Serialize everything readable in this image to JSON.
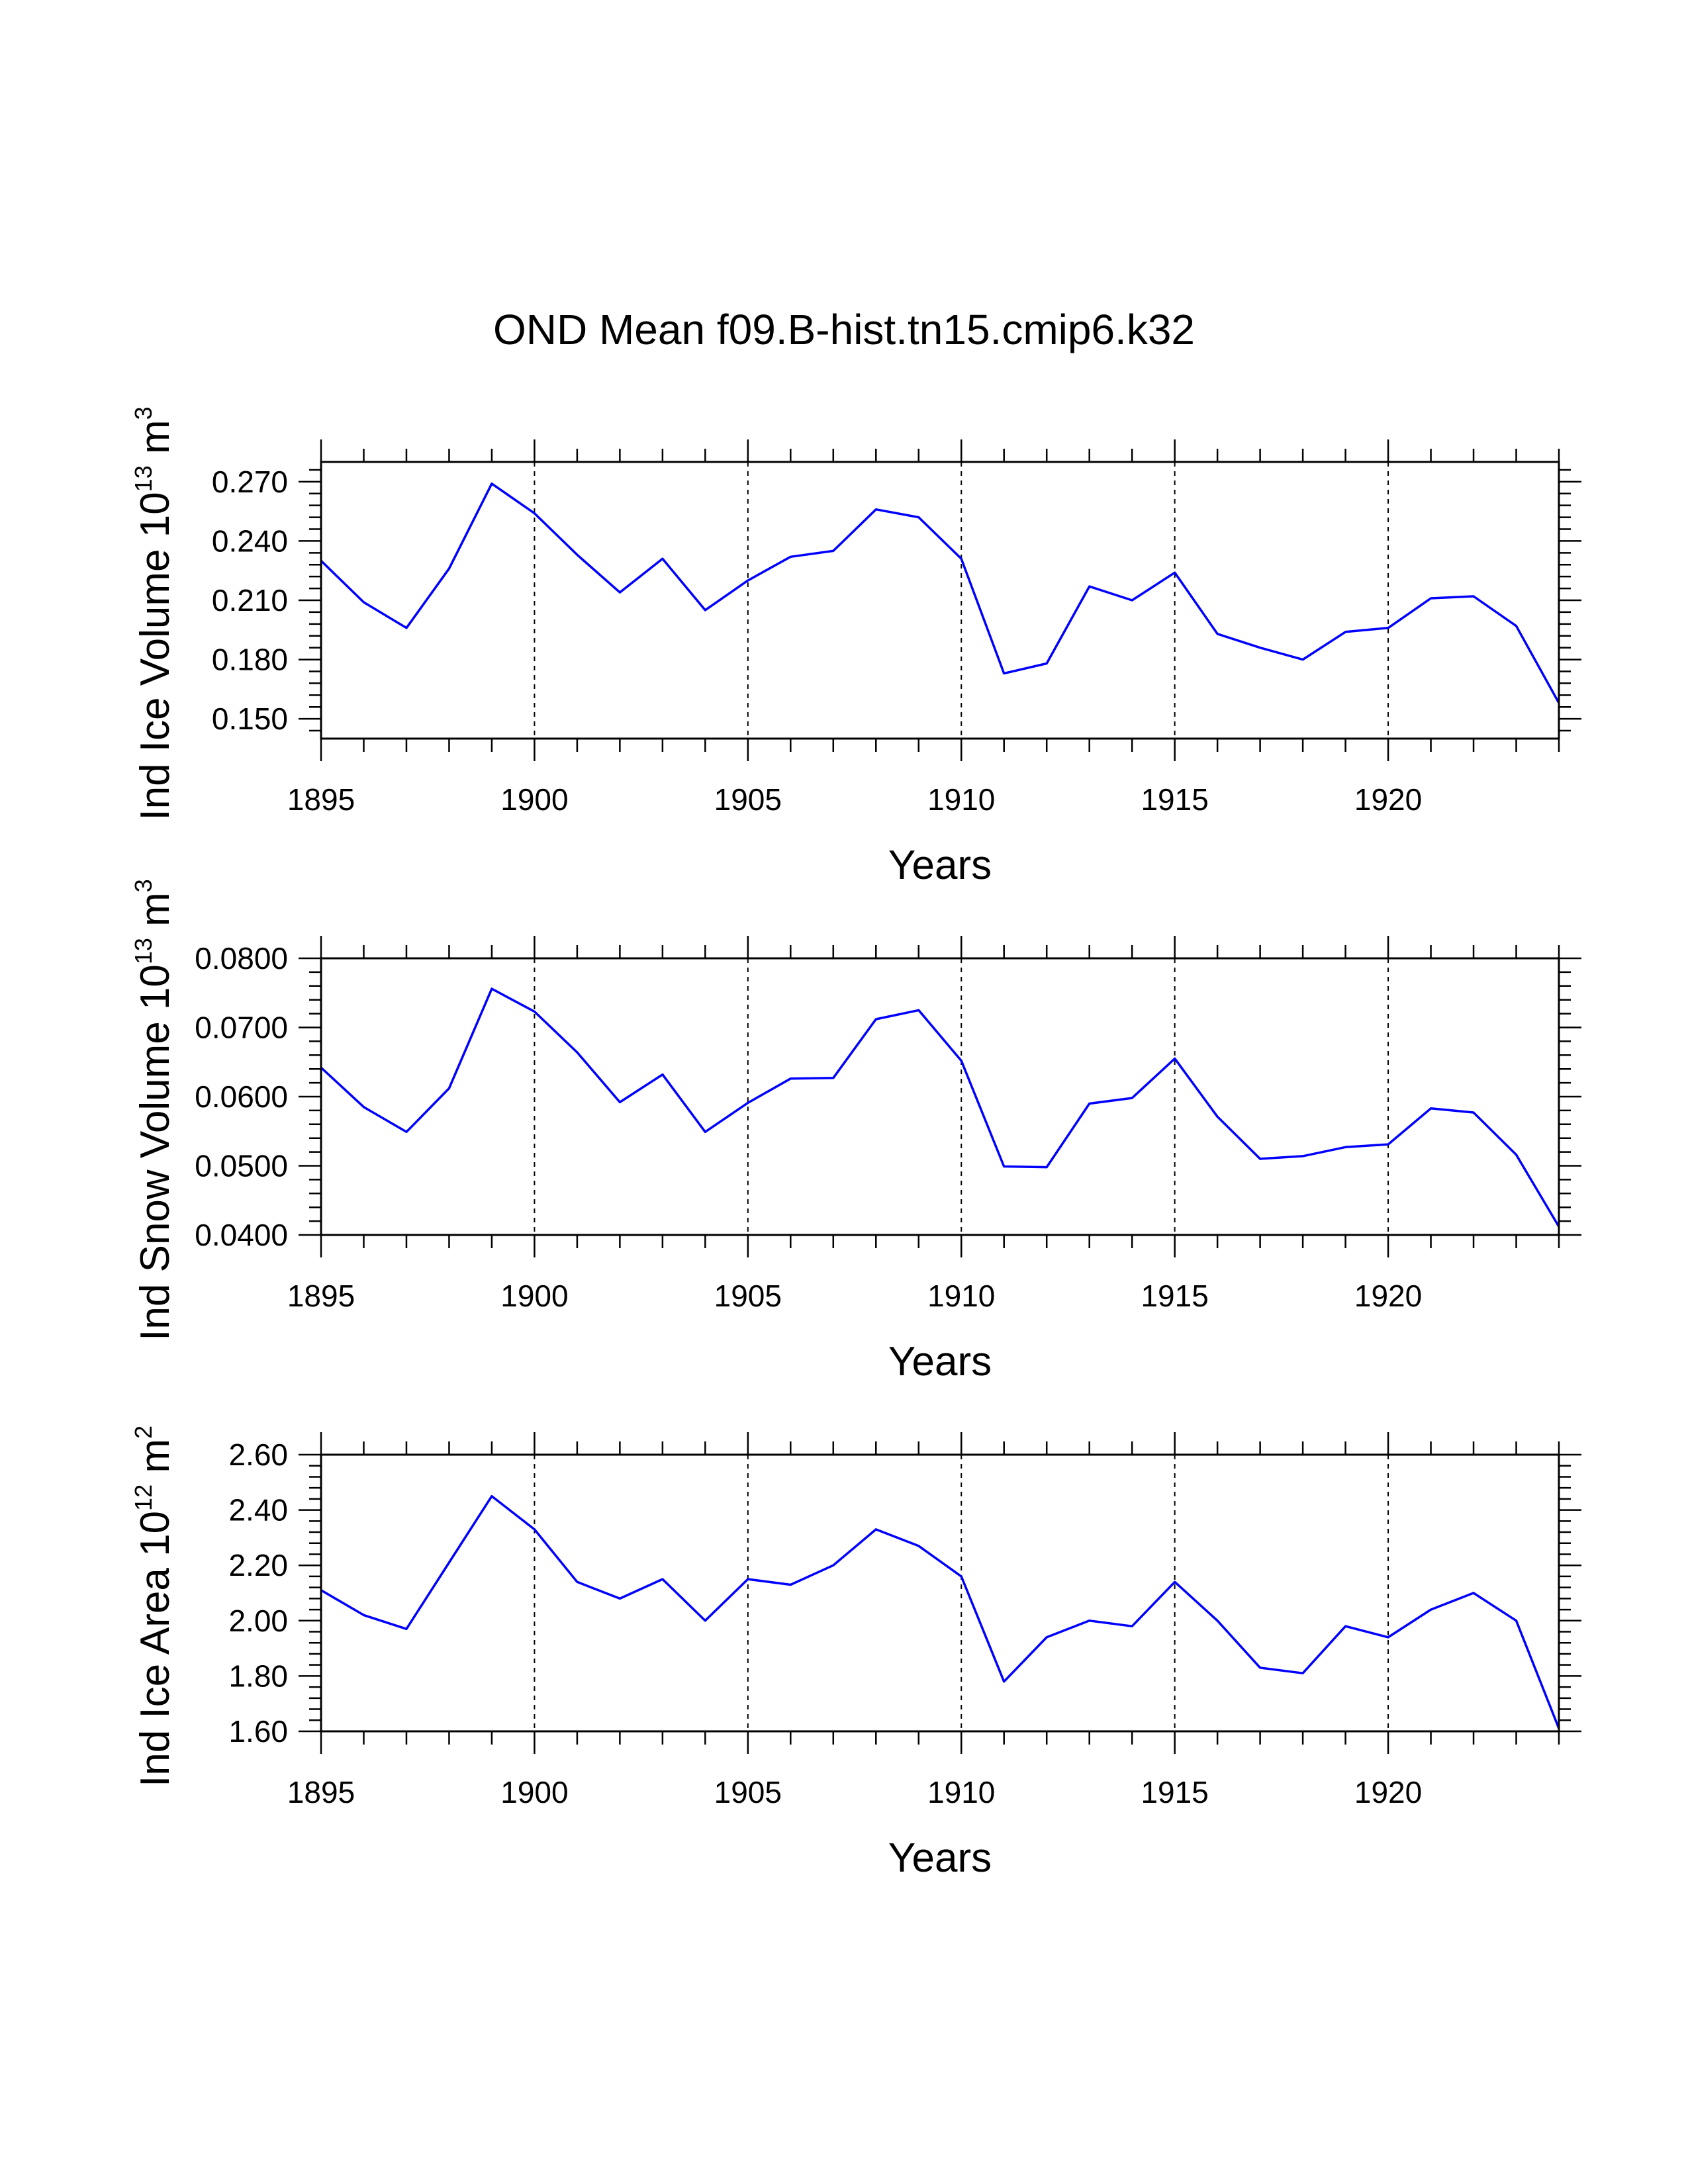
{
  "title": "OND Mean f09.B-hist.tn15.cmip6.k32",
  "colors": {
    "line": "#0000ff",
    "axis": "#000000",
    "grid": "#000000",
    "background": "#ffffff"
  },
  "chart_data": [
    {
      "type": "line",
      "xlabel": "Years",
      "ylabel": {
        "prefix": "Ind Ice Volume 10",
        "exponent": "13",
        "unit": " m",
        "unit_exponent": "3"
      },
      "xlim": [
        1895,
        1924
      ],
      "ylim": [
        0.14,
        0.28
      ],
      "xticks": [
        1895,
        1900,
        1905,
        1910,
        1915,
        1920
      ],
      "xtick_labels": [
        "1895",
        "1900",
        "1905",
        "1910",
        "1915",
        "1920"
      ],
      "yticks": [
        0.15,
        0.18,
        0.21,
        0.24,
        0.27
      ],
      "ytick_labels": [
        "0.150",
        "0.180",
        "0.210",
        "0.240",
        "0.270"
      ],
      "grid": "vertical dashed at x major ticks",
      "series": [
        {
          "name": "Ind Ice Volume",
          "x": [
            1895,
            1896,
            1897,
            1898,
            1899,
            1900,
            1901,
            1902,
            1903,
            1904,
            1905,
            1906,
            1907,
            1908,
            1909,
            1910,
            1911,
            1912,
            1913,
            1914,
            1915,
            1916,
            1917,
            1918,
            1919,
            1920,
            1921,
            1922,
            1923,
            1924
          ],
          "values": [
            0.23,
            0.209,
            0.196,
            0.226,
            0.269,
            0.254,
            0.233,
            0.214,
            0.231,
            0.205,
            0.22,
            0.232,
            0.235,
            0.256,
            0.252,
            0.231,
            0.173,
            0.178,
            0.217,
            0.21,
            0.224,
            0.193,
            0.186,
            0.18,
            0.194,
            0.196,
            0.211,
            0.212,
            0.197,
            0.158
          ]
        }
      ]
    },
    {
      "type": "line",
      "xlabel": "Years",
      "ylabel": {
        "prefix": "Ind Snow Volume 10",
        "exponent": "13",
        "unit": " m",
        "unit_exponent": "3"
      },
      "xlim": [
        1895,
        1924
      ],
      "ylim": [
        0.04,
        0.08
      ],
      "xticks": [
        1895,
        1900,
        1905,
        1910,
        1915,
        1920
      ],
      "xtick_labels": [
        "1895",
        "1900",
        "1905",
        "1910",
        "1915",
        "1920"
      ],
      "yticks": [
        0.04,
        0.05,
        0.06,
        0.07,
        0.08
      ],
      "ytick_labels": [
        "0.0400",
        "0.0500",
        "0.0600",
        "0.0700",
        "0.0800"
      ],
      "grid": "vertical dashed at x major ticks",
      "series": [
        {
          "name": "Ind Snow Volume",
          "x": [
            1895,
            1896,
            1897,
            1898,
            1899,
            1900,
            1901,
            1902,
            1903,
            1904,
            1905,
            1906,
            1907,
            1908,
            1909,
            1910,
            1911,
            1912,
            1913,
            1914,
            1915,
            1916,
            1917,
            1918,
            1919,
            1920,
            1921,
            1922,
            1923,
            1924
          ],
          "values": [
            0.0642,
            0.0585,
            0.0549,
            0.0612,
            0.0756,
            0.0723,
            0.0664,
            0.0592,
            0.0632,
            0.0549,
            0.0591,
            0.0626,
            0.0627,
            0.0712,
            0.0725,
            0.0652,
            0.0499,
            0.0498,
            0.059,
            0.0598,
            0.0655,
            0.0571,
            0.051,
            0.0514,
            0.0527,
            0.0531,
            0.0583,
            0.0577,
            0.0516,
            0.0412
          ]
        }
      ]
    },
    {
      "type": "line",
      "xlabel": "Years",
      "ylabel": {
        "prefix": "Ind Ice Area 10",
        "exponent": "12",
        "unit": " m",
        "unit_exponent": "2"
      },
      "xlim": [
        1895,
        1924
      ],
      "ylim": [
        1.6,
        2.6
      ],
      "xticks": [
        1895,
        1900,
        1905,
        1910,
        1915,
        1920
      ],
      "xtick_labels": [
        "1895",
        "1900",
        "1905",
        "1910",
        "1915",
        "1920"
      ],
      "yticks": [
        1.6,
        1.8,
        2.0,
        2.2,
        2.4,
        2.6
      ],
      "ytick_labels": [
        "1.60",
        "1.80",
        "2.00",
        "2.20",
        "2.40",
        "2.60"
      ],
      "grid": "vertical dashed at x major ticks",
      "series": [
        {
          "name": "Ind Ice Area",
          "x": [
            1895,
            1896,
            1897,
            1898,
            1899,
            1900,
            1901,
            1902,
            1903,
            1904,
            1905,
            1906,
            1907,
            1908,
            1909,
            1910,
            1911,
            1912,
            1913,
            1914,
            1915,
            1916,
            1917,
            1918,
            1919,
            1920,
            1921,
            1922,
            1923,
            1924
          ],
          "values": [
            2.11,
            2.02,
            1.97,
            2.21,
            2.45,
            2.33,
            2.14,
            2.08,
            2.15,
            2.0,
            2.15,
            2.13,
            2.2,
            2.33,
            2.27,
            2.16,
            1.78,
            1.94,
            2.0,
            1.98,
            2.14,
            2.0,
            1.83,
            1.81,
            1.98,
            1.94,
            2.04,
            2.1,
            2.0,
            1.61
          ]
        }
      ]
    }
  ]
}
